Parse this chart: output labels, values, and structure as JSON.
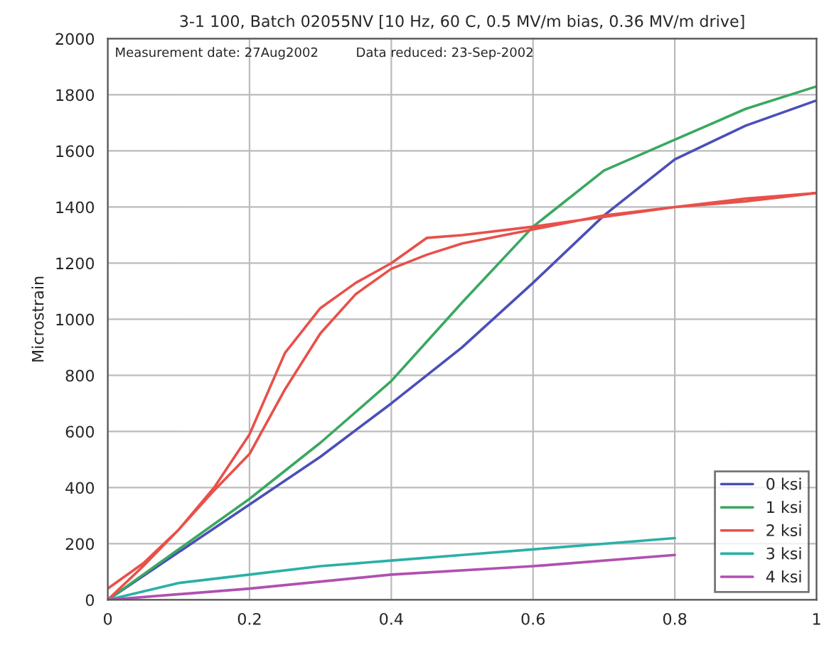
{
  "chart_data": {
    "type": "line",
    "title": "3-1 100, Batch 02055NV [10 Hz, 60 C, 0.5 MV/m bias, 0.36 MV/m drive]",
    "ylabel": "Microstrain",
    "annotations": [
      "Measurement date: 27Aug2002",
      "Data reduced: 23-Sep-2002"
    ],
    "xlim": [
      0,
      1
    ],
    "xticks": [
      0,
      0.2,
      0.4,
      0.6,
      0.8,
      1
    ],
    "ylim": [
      0,
      2000
    ],
    "yticks": [
      0,
      200,
      400,
      600,
      800,
      1000,
      1200,
      1400,
      1600,
      1800,
      2000
    ],
    "grid": true,
    "legend": "bottom right",
    "series": [
      {
        "name": "0 ksi",
        "color": "#4b4fb8",
        "x": [
          0,
          0.1,
          0.2,
          0.3,
          0.4,
          0.5,
          0.6,
          0.7,
          0.8,
          0.9,
          1
        ],
        "values": [
          0,
          170,
          340,
          510,
          700,
          900,
          1130,
          1370,
          1570,
          1690,
          1780
        ]
      },
      {
        "name": "1 ksi",
        "color": "#3aa860",
        "x": [
          0,
          0.1,
          0.2,
          0.3,
          0.4,
          0.5,
          0.6,
          0.7,
          0.8,
          0.9,
          1
        ],
        "values": [
          0,
          180,
          360,
          560,
          780,
          1060,
          1330,
          1530,
          1640,
          1750,
          1830
        ]
      },
      {
        "name": "2 ksi",
        "color": "#e8504a",
        "x": [
          0,
          0.05,
          0.1,
          0.15,
          0.2,
          0.25,
          0.3,
          0.35,
          0.4,
          0.45,
          0.5,
          0.6,
          0.7,
          0.8,
          0.9,
          1,
          0.9,
          0.8,
          0.6,
          0.5,
          0.45,
          0.4,
          0.35,
          0.3,
          0.25,
          0.2,
          0.15,
          0.1,
          0.05,
          0
        ],
        "values": [
          0,
          120,
          250,
          390,
          520,
          750,
          950,
          1090,
          1180,
          1230,
          1270,
          1320,
          1370,
          1400,
          1420,
          1450,
          1430,
          1400,
          1330,
          1300,
          1290,
          1200,
          1130,
          1040,
          880,
          590,
          400,
          250,
          130,
          40
        ]
      },
      {
        "name": "3 ksi",
        "color": "#2ab0a8",
        "x": [
          0,
          0.1,
          0.2,
          0.3,
          0.4,
          0.5,
          0.6,
          0.7,
          0.8
        ],
        "values": [
          0,
          60,
          90,
          120,
          140,
          160,
          180,
          200,
          220
        ]
      },
      {
        "name": "4 ksi",
        "color": "#b050b0",
        "x": [
          0,
          0.2,
          0.4,
          0.6,
          0.8
        ],
        "values": [
          0,
          40,
          90,
          120,
          160
        ]
      }
    ]
  }
}
